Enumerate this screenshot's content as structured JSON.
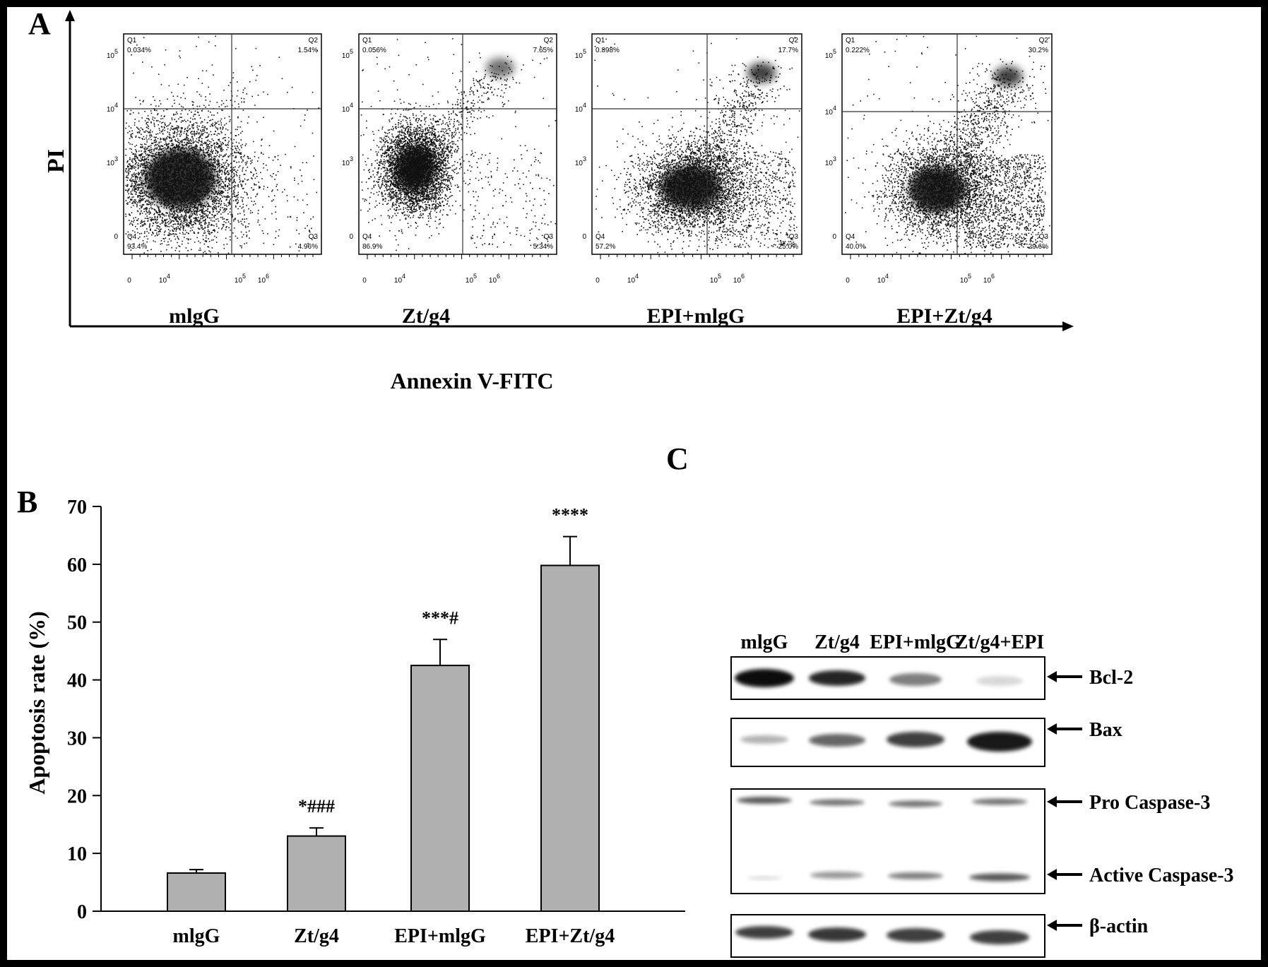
{
  "panel_a": {
    "letter": "A",
    "y_axis_label": "PI",
    "x_axis_label": "Annexin V-FITC",
    "y_ticks": [
      "10^5",
      "10^4",
      "10^3",
      "0"
    ],
    "x_ticks": [
      "0",
      "10^4",
      "10^5",
      "10^6"
    ],
    "quadrant_names": [
      "Q1",
      "Q2",
      "Q3",
      "Q4"
    ],
    "plots": [
      {
        "label": "mlgG",
        "q1": "0.034%",
        "q2": "1.54%",
        "q3": "4.96%",
        "q4": "93.4%"
      },
      {
        "label": "Zt/g4",
        "q1": "0.056%",
        "q2": "7.65%",
        "q3": "5.34%",
        "q4": "86.9%"
      },
      {
        "label": "EPI+mlgG",
        "q1": "0.898%",
        "q2": "17.7%",
        "q3": "25.0%",
        "q4": "57.2%"
      },
      {
        "label": "EPI+Zt/g4",
        "q1": "0.222%",
        "q2": "30.2%",
        "q3": "29.6%",
        "q4": "40.0%"
      }
    ]
  },
  "panel_b": {
    "letter": "B",
    "ylabel": "Apoptosis rate (%)",
    "y_ticks": [
      "0",
      "10",
      "20",
      "30",
      "40",
      "50",
      "60",
      "70"
    ]
  },
  "chart_data": {
    "type": "bar",
    "categories": [
      "mlgG",
      "Zt/g4",
      "EPI+mlgG",
      "EPI+Zt/g4"
    ],
    "values": [
      6.6,
      13.0,
      42.5,
      59.8
    ],
    "errors": [
      0.6,
      1.4,
      4.5,
      5.0
    ],
    "annotations": [
      "",
      "*###",
      "***#",
      "****"
    ],
    "ylabel": "Apoptosis rate (%)",
    "ylim": [
      0,
      70
    ],
    "bar_color": "#b0b0b0"
  },
  "panel_c": {
    "letter": "C",
    "lanes": [
      "mlgG",
      "Zt/g4",
      "EPI+mlgG",
      "Zt/g4+EPI"
    ],
    "labels": {
      "bcl2": "Bcl-2",
      "bax": "Bax",
      "pro_casp3": "Pro Caspase-3",
      "active_casp3": "Active Caspase-3",
      "actin": "β-actin"
    }
  }
}
